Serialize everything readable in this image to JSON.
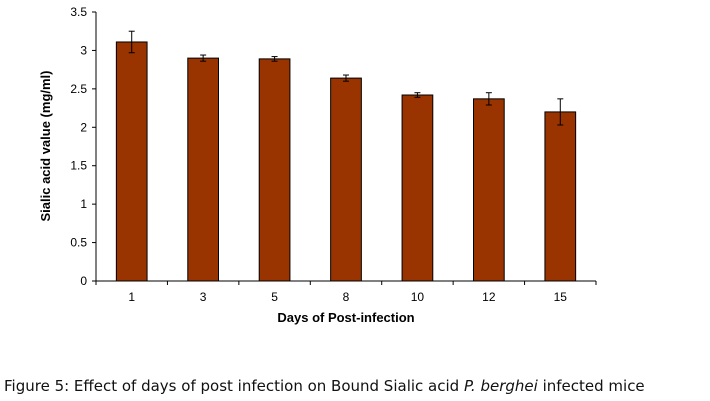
{
  "chart_data": {
    "type": "bar",
    "categories": [
      "1",
      "3",
      "5",
      "8",
      "10",
      "12",
      "15"
    ],
    "values": [
      3.11,
      2.9,
      2.89,
      2.64,
      2.42,
      2.37,
      2.2
    ],
    "errors": [
      0.14,
      0.04,
      0.03,
      0.04,
      0.03,
      0.08,
      0.17
    ],
    "xlabel": "Days of Post-infection",
    "ylabel": "Sialic acid value (mg/ml)",
    "ylim": [
      0,
      3.5
    ],
    "yticks": [
      "0",
      "0.5",
      "1",
      "1.5",
      "2",
      "2.5",
      "3",
      "3.5"
    ],
    "grid": false,
    "bar_color": "#993300"
  },
  "caption": {
    "prefix": "Figure 5: Effect of days of post infection on Bound Sialic acid ",
    "italic": "P. berghei",
    "suffix": " infected mice"
  }
}
